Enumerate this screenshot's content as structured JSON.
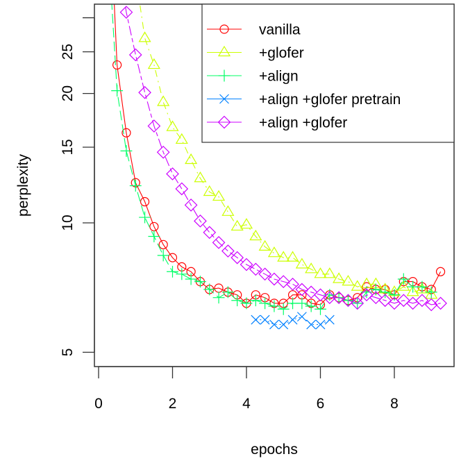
{
  "chart_data": {
    "type": "line",
    "title": "",
    "xlabel": "epochs",
    "ylabel": "perplexity",
    "y_scale": "log",
    "xlim": [
      -0.1,
      9.6
    ],
    "ylim": [
      4.65,
      31.5
    ],
    "x_ticks": [
      0,
      2,
      4,
      6,
      8
    ],
    "x_tick_labels": [
      "0",
      "2",
      "4",
      "6",
      "8"
    ],
    "y_ticks": [
      5,
      10,
      15,
      20,
      25,
      30
    ],
    "y_tick_labels": [
      "5",
      "10",
      "15",
      "20",
      "25",
      ""
    ],
    "grid": false,
    "legend_position": "top-right",
    "series": [
      {
        "name": "vanilla",
        "color": "#ff0000",
        "marker": "circle",
        "line_style": "solid",
        "x": [
          0.5,
          0.75,
          1.0,
          1.25,
          1.5,
          1.75,
          2.0,
          2.25,
          2.5,
          2.75,
          3.0,
          3.25,
          3.5,
          3.75,
          4.0,
          4.25,
          4.5,
          4.75,
          5.0,
          5.25,
          5.5,
          5.75,
          6.0,
          6.25,
          6.5,
          6.75,
          7.0,
          7.25,
          7.5,
          7.75,
          8.0,
          8.25,
          8.5,
          8.75,
          9.0,
          9.25
        ],
        "values": [
          23.3,
          16.2,
          12.4,
          11.2,
          9.8,
          8.9,
          8.3,
          7.9,
          7.7,
          7.3,
          7.0,
          7.05,
          6.9,
          6.8,
          6.5,
          6.8,
          6.7,
          6.5,
          6.5,
          6.8,
          6.8,
          6.5,
          6.45,
          6.8,
          6.7,
          6.6,
          6.7,
          7.1,
          7.0,
          7.0,
          6.8,
          7.3,
          7.3,
          7.1,
          7.0,
          7.7
        ]
      },
      {
        "name": "+glofer",
        "color": "#ccff00",
        "marker": "triangle",
        "line_style": "dotdash",
        "x": [
          1.25,
          1.5,
          1.75,
          2.0,
          2.25,
          2.5,
          2.75,
          3.0,
          3.25,
          3.5,
          3.75,
          4.0,
          4.25,
          4.5,
          4.75,
          5.0,
          5.25,
          5.5,
          5.75,
          6.0,
          6.25,
          6.5,
          6.75,
          7.0,
          7.25,
          7.5,
          7.75,
          8.0,
          8.25,
          8.5,
          8.75,
          9.0
        ],
        "values": [
          26.9,
          23.3,
          19.1,
          16.7,
          15.6,
          14.0,
          12.7,
          11.8,
          11.5,
          10.6,
          9.8,
          9.9,
          9.3,
          8.8,
          8.5,
          8.3,
          8.3,
          8.0,
          7.8,
          7.6,
          7.6,
          7.4,
          7.3,
          7.1,
          7.2,
          7.2,
          7.0,
          6.9,
          7.1,
          6.9,
          7.0,
          6.8
        ]
      },
      {
        "name": "+align",
        "color": "#00ff66",
        "marker": "plus",
        "line_style": "longdash",
        "x": [
          0.5,
          0.75,
          1.0,
          1.25,
          1.5,
          1.75,
          2.0,
          2.25,
          2.5,
          2.75,
          3.0,
          3.25,
          3.5,
          3.75,
          4.0,
          4.25,
          4.5,
          4.75,
          5.0,
          5.25,
          5.5,
          5.75,
          6.0,
          6.25,
          6.5,
          6.75,
          7.0,
          7.25,
          7.5,
          7.75,
          8.0,
          8.25,
          8.5,
          8.75,
          9.0
        ],
        "values": [
          20.3,
          14.7,
          12.2,
          10.3,
          9.3,
          8.4,
          7.7,
          7.6,
          7.4,
          7.3,
          7.0,
          6.7,
          6.9,
          6.6,
          6.5,
          6.6,
          6.5,
          6.4,
          6.3,
          6.5,
          6.5,
          6.4,
          6.3,
          6.8,
          6.7,
          6.6,
          6.5,
          6.9,
          7.0,
          6.9,
          6.8,
          7.4,
          7.1,
          7.1,
          6.9
        ]
      },
      {
        "name": "+align +glofer pretrain",
        "color": "#0080ff",
        "marker": "x",
        "line_style": "dotted",
        "x": [
          4.25,
          4.5,
          4.75,
          5.0,
          5.25,
          5.5,
          5.75,
          6.0,
          6.25
        ],
        "values": [
          5.95,
          5.95,
          5.8,
          5.8,
          5.95,
          6.05,
          5.8,
          5.8,
          5.95
        ]
      },
      {
        "name": "+align +glofer",
        "color": "#cc00ff",
        "marker": "diamond",
        "line_style": "twodash",
        "x": [
          0.75,
          1.0,
          1.25,
          1.5,
          1.75,
          2.0,
          2.25,
          2.5,
          2.75,
          3.0,
          3.25,
          3.5,
          3.75,
          4.0,
          4.25,
          4.5,
          4.75,
          5.0,
          5.25,
          5.5,
          5.75,
          6.0,
          6.25,
          6.5,
          6.75,
          7.0,
          7.25,
          7.5,
          7.75,
          8.0,
          8.25,
          8.5,
          8.75,
          9.0,
          9.25
        ],
        "values": [
          30.9,
          24.6,
          20.1,
          16.8,
          14.6,
          13.0,
          12.0,
          11.0,
          10.1,
          9.5,
          9.0,
          8.6,
          8.3,
          8.0,
          7.8,
          7.6,
          7.4,
          7.3,
          7.2,
          7.0,
          6.9,
          6.8,
          6.7,
          6.7,
          6.6,
          6.5,
          6.8,
          6.7,
          6.6,
          6.5,
          6.6,
          6.5,
          6.6,
          6.45,
          6.5
        ]
      }
    ]
  },
  "axes": {
    "xlabel": "epochs",
    "ylabel": "perplexity",
    "x_tick_labels": [
      "0",
      "2",
      "4",
      "6",
      "8"
    ],
    "y_tick_labels": [
      "5",
      "10",
      "15",
      "20",
      "25"
    ]
  },
  "legend": {
    "items": [
      {
        "label": "vanilla",
        "color": "#ff0000",
        "marker": "circle"
      },
      {
        "label": "+glofer",
        "color": "#ccff00",
        "marker": "triangle"
      },
      {
        "label": "+align",
        "color": "#00ff66",
        "marker": "plus"
      },
      {
        "label": "+align +glofer pretrain",
        "color": "#0080ff",
        "marker": "x"
      },
      {
        "label": "+align +glofer",
        "color": "#cc00ff",
        "marker": "diamond"
      }
    ]
  }
}
